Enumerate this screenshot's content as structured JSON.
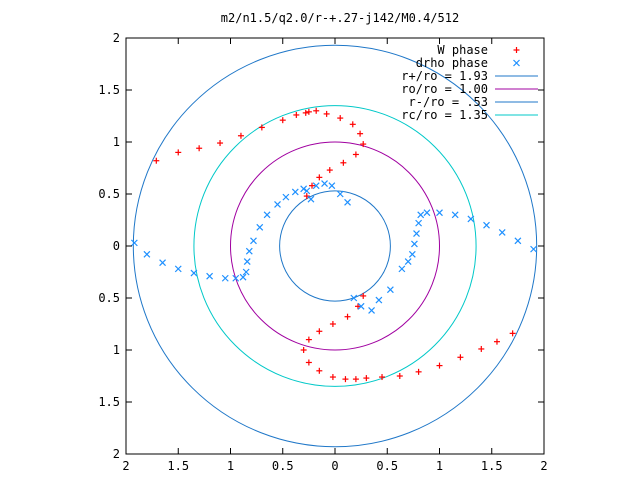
{
  "chart_data": {
    "type": "scatter",
    "title": "m2/n1.5/q2.0/r-+.27-j142/M0.4/512",
    "xlabel": "",
    "ylabel": "",
    "xlim": [
      -2,
      2
    ],
    "ylim": [
      -2,
      2
    ],
    "x_tick_labels": [
      "2",
      "1.5",
      "1",
      "0.5",
      "0",
      "0.5",
      "1",
      "1.5",
      "2"
    ],
    "y_tick_labels": [
      "2",
      "1.5",
      "1",
      "0.5",
      "0",
      "0.5",
      "1",
      "1.5",
      "2"
    ],
    "grid": false,
    "legend_position": "top-right",
    "colors": {
      "w_phase": "#ff0000",
      "drho_phase": "#1e90ff",
      "r_plus": "#1f77c8",
      "ro": "#a000a0",
      "r_minus": "#1f77c8",
      "rc": "#00c8c8"
    },
    "series": [
      {
        "name": "W phase",
        "marker": "+",
        "x": [
          -1.71,
          -1.5,
          -1.3,
          -1.1,
          -0.9,
          -0.7,
          -0.5,
          -0.37,
          -0.28,
          -0.25,
          -0.18,
          -0.08,
          0.05,
          0.17,
          0.24,
          0.27,
          0.2,
          0.08,
          -0.05,
          -0.15,
          -0.22,
          -0.27,
          0.27,
          0.22,
          0.12,
          -0.02,
          -0.15,
          -0.25,
          -0.3,
          -0.25,
          -0.15,
          -0.02,
          0.1,
          0.2,
          0.3,
          0.45,
          0.62,
          0.8,
          1.0,
          1.2,
          1.4,
          1.55,
          1.7
        ],
        "y": [
          0.82,
          0.9,
          0.94,
          0.99,
          1.06,
          1.14,
          1.21,
          1.26,
          1.28,
          1.29,
          1.3,
          1.27,
          1.23,
          1.17,
          1.08,
          0.98,
          0.88,
          0.8,
          0.73,
          0.66,
          0.58,
          0.48,
          -0.48,
          -0.58,
          -0.68,
          -0.75,
          -0.82,
          -0.9,
          -1.0,
          -1.12,
          -1.2,
          -1.26,
          -1.28,
          -1.28,
          -1.27,
          -1.26,
          -1.25,
          -1.21,
          -1.15,
          -1.07,
          -0.99,
          -0.92,
          -0.84
        ]
      },
      {
        "name": "drho phase",
        "marker": "x",
        "x": [
          1.9,
          1.75,
          1.6,
          1.45,
          1.3,
          1.15,
          1.0,
          0.88,
          0.82,
          0.8,
          0.78,
          0.76,
          0.74,
          0.7,
          0.64,
          -1.92,
          -1.8,
          -1.65,
          -1.5,
          -1.35,
          -1.2,
          -1.05,
          -0.95,
          -0.88,
          -0.85,
          -0.84,
          -0.82,
          -0.78,
          -0.72,
          -0.65,
          -0.55,
          -0.47,
          -0.38,
          -0.3,
          -0.27,
          -0.23,
          -0.18,
          -0.1,
          -0.03,
          0.05,
          0.12,
          0.18,
          0.25,
          0.35,
          0.42,
          0.53
        ],
        "y": [
          -0.03,
          0.05,
          0.13,
          0.2,
          0.26,
          0.3,
          0.32,
          0.32,
          0.3,
          0.22,
          0.12,
          0.02,
          -0.08,
          -0.15,
          -0.22,
          0.03,
          -0.08,
          -0.16,
          -0.22,
          -0.26,
          -0.29,
          -0.31,
          -0.31,
          -0.3,
          -0.25,
          -0.15,
          -0.05,
          0.05,
          0.18,
          0.3,
          0.4,
          0.47,
          0.52,
          0.55,
          0.53,
          0.45,
          0.58,
          0.6,
          0.58,
          0.5,
          0.42,
          -0.5,
          -0.58,
          -0.62,
          -0.52,
          -0.42
        ]
      }
    ],
    "circles": [
      {
        "name": "r+/ro = 1.93",
        "radius": 1.93
      },
      {
        "name": "ro/ro = 1.00",
        "radius": 1.0
      },
      {
        "name": "r-/ro = .53",
        "radius": 0.53
      },
      {
        "name": "rc/ro = 1.35",
        "radius": 1.35
      }
    ]
  }
}
